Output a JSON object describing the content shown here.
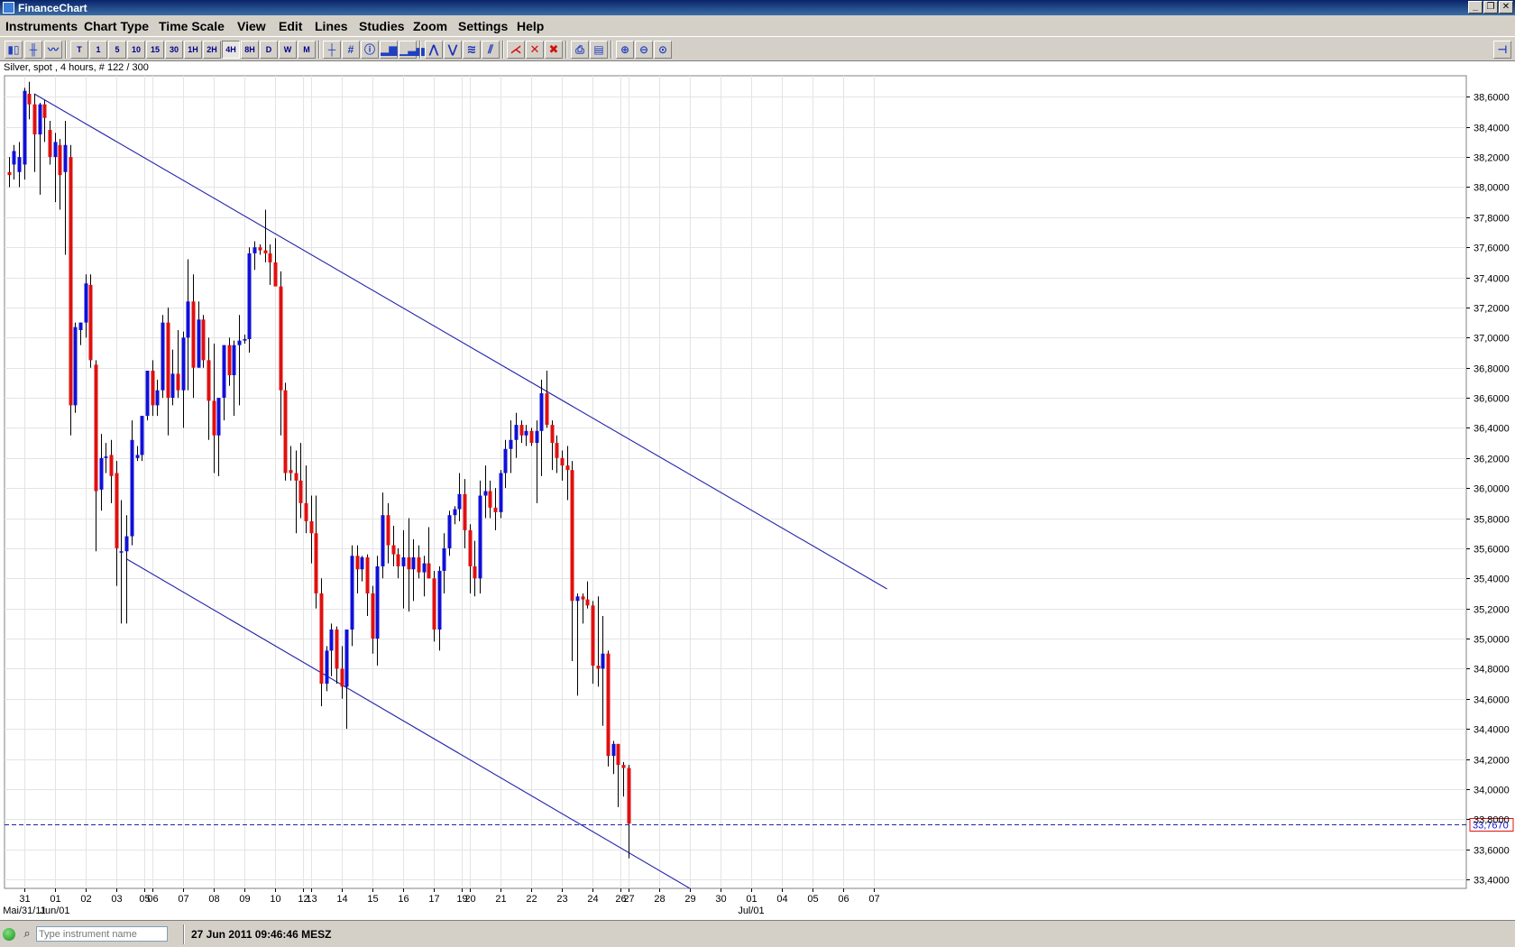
{
  "window": {
    "title": "FinanceChart"
  },
  "menu": [
    "Instruments",
    "Chart Type",
    "Time Scale",
    "View",
    "Edit",
    "Lines",
    "Studies",
    "Zoom",
    "Settings",
    "Help"
  ],
  "toolbar": {
    "timeframes": [
      "T",
      "1",
      "5",
      "10",
      "15",
      "30",
      "1H",
      "2H",
      "4H",
      "8H",
      "D",
      "W",
      "M"
    ],
    "active_timeframe": "4H"
  },
  "chart_info": "Silver, spot , 4 hours, # 122 / 300",
  "status": {
    "search_placeholder": "Type instrument name",
    "datetime": "27 Jun 2011 09:46:46 MESZ"
  },
  "chart_data": {
    "type": "candlestick",
    "instrument": "Silver, spot",
    "timeframe": "4 hours",
    "ylim": [
      33.34,
      38.74
    ],
    "yticks": [
      "38,6000",
      "38,4000",
      "38,2000",
      "38,0000",
      "37,8000",
      "37,6000",
      "37,4000",
      "37,2000",
      "37,0000",
      "36,8000",
      "36,6000",
      "36,4000",
      "36,2000",
      "36,0000",
      "35,8000",
      "35,6000",
      "35,4000",
      "35,2000",
      "35,0000",
      "34,8000",
      "34,6000",
      "34,4000",
      "34,2000",
      "34,0000",
      "33,8000",
      "33,6000",
      "33,4000"
    ],
    "xticks": [
      {
        "label": "31",
        "i": 3
      },
      {
        "label": "01",
        "i": 9
      },
      {
        "label": "02",
        "i": 15
      },
      {
        "label": "03",
        "i": 21
      },
      {
        "label": "05",
        "i": 26.5
      },
      {
        "label": "06",
        "i": 28
      },
      {
        "label": "07",
        "i": 34
      },
      {
        "label": "08",
        "i": 40
      },
      {
        "label": "09",
        "i": 46
      },
      {
        "label": "10",
        "i": 52
      },
      {
        "label": "12",
        "i": 57.5
      },
      {
        "label": "13",
        "i": 59
      },
      {
        "label": "14",
        "i": 65
      },
      {
        "label": "15",
        "i": 71
      },
      {
        "label": "16",
        "i": 77
      },
      {
        "label": "17",
        "i": 83
      },
      {
        "label": "19",
        "i": 88.5
      },
      {
        "label": "20",
        "i": 90
      },
      {
        "label": "21",
        "i": 96
      },
      {
        "label": "22",
        "i": 102
      },
      {
        "label": "23",
        "i": 108
      },
      {
        "label": "24",
        "i": 114
      },
      {
        "label": "26",
        "i": 119.5
      },
      {
        "label": "27",
        "i": 121
      },
      {
        "label": "28",
        "i": 127
      },
      {
        "label": "29",
        "i": 133
      },
      {
        "label": "30",
        "i": 139
      },
      {
        "label": "01",
        "i": 145
      },
      {
        "label": "04",
        "i": 151
      },
      {
        "label": "05",
        "i": 157
      },
      {
        "label": "06",
        "i": 163
      },
      {
        "label": "07",
        "i": 169
      }
    ],
    "xticks_secondary": [
      {
        "label": "Mai/31/11",
        "i": 3
      },
      {
        "label": "Jun/01",
        "i": 9
      },
      {
        "label": "Jul/01",
        "i": 145
      }
    ],
    "last_price_label": "33,7670",
    "last_price": 33.767,
    "trendlines": [
      {
        "from": {
          "i": 5,
          "p": 38.62
        },
        "to": {
          "i": 171.5,
          "p": 35.33
        }
      },
      {
        "from": {
          "i": 23,
          "p": 35.53
        },
        "to": {
          "i": 133.5,
          "p": 33.33
        }
      }
    ],
    "candles": [
      {
        "o": 38.1,
        "h": 38.2,
        "l": 38.0,
        "c": 38.08
      },
      {
        "o": 38.15,
        "h": 38.28,
        "l": 38.05,
        "c": 38.24
      },
      {
        "o": 38.1,
        "h": 38.3,
        "l": 38.0,
        "c": 38.2
      },
      {
        "o": 38.15,
        "h": 38.66,
        "l": 38.05,
        "c": 38.64
      },
      {
        "o": 38.62,
        "h": 38.7,
        "l": 38.45,
        "c": 38.55
      },
      {
        "o": 38.55,
        "h": 38.62,
        "l": 38.1,
        "c": 38.35
      },
      {
        "o": 38.35,
        "h": 38.56,
        "l": 37.95,
        "c": 38.55
      },
      {
        "o": 38.55,
        "h": 38.58,
        "l": 38.3,
        "c": 38.46
      },
      {
        "o": 38.38,
        "h": 38.44,
        "l": 38.15,
        "c": 38.2
      },
      {
        "o": 38.2,
        "h": 38.36,
        "l": 37.9,
        "c": 38.3
      },
      {
        "o": 38.28,
        "h": 38.32,
        "l": 37.85,
        "c": 38.08
      },
      {
        "o": 38.1,
        "h": 38.44,
        "l": 37.55,
        "c": 38.28
      },
      {
        "o": 38.2,
        "h": 38.28,
        "l": 36.35,
        "c": 36.55
      },
      {
        "o": 36.55,
        "h": 37.1,
        "l": 36.5,
        "c": 37.07
      },
      {
        "o": 37.05,
        "h": 37.1,
        "l": 36.95,
        "c": 37.1
      },
      {
        "o": 37.1,
        "h": 37.42,
        "l": 37.0,
        "c": 37.36
      },
      {
        "o": 37.35,
        "h": 37.42,
        "l": 36.8,
        "c": 36.85
      },
      {
        "o": 36.82,
        "h": 36.85,
        "l": 35.58,
        "c": 35.98
      },
      {
        "o": 35.99,
        "h": 36.36,
        "l": 35.85,
        "c": 36.2
      },
      {
        "o": 36.2,
        "h": 36.3,
        "l": 36.1,
        "c": 36.21
      },
      {
        "o": 36.22,
        "h": 36.32,
        "l": 35.9,
        "c": 36.08
      },
      {
        "o": 36.1,
        "h": 36.18,
        "l": 35.35,
        "c": 35.6
      },
      {
        "o": 35.58,
        "h": 35.92,
        "l": 35.1,
        "c": 35.58
      },
      {
        "o": 35.58,
        "h": 35.82,
        "l": 35.1,
        "c": 35.68
      },
      {
        "o": 35.68,
        "h": 36.45,
        "l": 35.62,
        "c": 36.32
      },
      {
        "o": 36.2,
        "h": 36.28,
        "l": 36.18,
        "c": 36.22
      },
      {
        "o": 36.22,
        "h": 36.48,
        "l": 36.18,
        "c": 36.48
      },
      {
        "o": 36.48,
        "h": 36.78,
        "l": 36.45,
        "c": 36.78
      },
      {
        "o": 36.78,
        "h": 36.85,
        "l": 36.48,
        "c": 36.55
      },
      {
        "o": 36.55,
        "h": 36.72,
        "l": 36.48,
        "c": 36.65
      },
      {
        "o": 36.65,
        "h": 37.15,
        "l": 36.6,
        "c": 37.1
      },
      {
        "o": 37.1,
        "h": 37.2,
        "l": 36.35,
        "c": 36.6
      },
      {
        "o": 36.6,
        "h": 36.92,
        "l": 36.55,
        "c": 36.76
      },
      {
        "o": 36.76,
        "h": 37.05,
        "l": 36.6,
        "c": 36.65
      },
      {
        "o": 36.65,
        "h": 37.04,
        "l": 36.4,
        "c": 37.0
      },
      {
        "o": 37.0,
        "h": 37.52,
        "l": 36.65,
        "c": 37.24
      },
      {
        "o": 37.24,
        "h": 37.42,
        "l": 36.6,
        "c": 36.8
      },
      {
        "o": 36.8,
        "h": 37.24,
        "l": 36.8,
        "c": 37.12
      },
      {
        "o": 37.12,
        "h": 37.15,
        "l": 36.8,
        "c": 36.85
      },
      {
        "o": 36.85,
        "h": 37.0,
        "l": 36.32,
        "c": 36.58
      },
      {
        "o": 36.58,
        "h": 36.96,
        "l": 36.1,
        "c": 36.35
      },
      {
        "o": 36.35,
        "h": 36.58,
        "l": 36.08,
        "c": 36.6
      },
      {
        "o": 36.6,
        "h": 36.95,
        "l": 36.45,
        "c": 36.95
      },
      {
        "o": 36.95,
        "h": 37.0,
        "l": 36.68,
        "c": 36.75
      },
      {
        "o": 36.75,
        "h": 36.98,
        "l": 36.48,
        "c": 36.95
      },
      {
        "o": 36.95,
        "h": 37.15,
        "l": 36.55,
        "c": 36.98
      },
      {
        "o": 36.98,
        "h": 37.02,
        "l": 36.96,
        "c": 36.99
      },
      {
        "o": 36.99,
        "h": 37.6,
        "l": 36.9,
        "c": 37.56
      },
      {
        "o": 37.56,
        "h": 37.64,
        "l": 37.45,
        "c": 37.6
      },
      {
        "o": 37.6,
        "h": 37.62,
        "l": 37.55,
        "c": 37.58
      },
      {
        "o": 37.58,
        "h": 37.85,
        "l": 37.5,
        "c": 37.56
      },
      {
        "o": 37.56,
        "h": 37.62,
        "l": 37.35,
        "c": 37.5
      },
      {
        "o": 37.5,
        "h": 37.66,
        "l": 37.35,
        "c": 37.34
      },
      {
        "o": 37.34,
        "h": 37.44,
        "l": 36.35,
        "c": 36.65
      },
      {
        "o": 36.65,
        "h": 36.7,
        "l": 36.05,
        "c": 36.1
      },
      {
        "o": 36.12,
        "h": 36.28,
        "l": 36.05,
        "c": 36.1
      },
      {
        "o": 36.1,
        "h": 36.25,
        "l": 35.7,
        "c": 36.05
      },
      {
        "o": 36.05,
        "h": 36.3,
        "l": 35.8,
        "c": 35.9
      },
      {
        "o": 35.9,
        "h": 36.15,
        "l": 35.7,
        "c": 35.78
      },
      {
        "o": 35.78,
        "h": 35.95,
        "l": 35.5,
        "c": 35.7
      },
      {
        "o": 35.7,
        "h": 35.95,
        "l": 35.2,
        "c": 35.3
      },
      {
        "o": 35.3,
        "h": 35.4,
        "l": 34.55,
        "c": 34.7
      },
      {
        "o": 34.7,
        "h": 34.95,
        "l": 34.65,
        "c": 34.92
      },
      {
        "o": 34.92,
        "h": 35.1,
        "l": 34.75,
        "c": 35.06
      },
      {
        "o": 35.06,
        "h": 35.08,
        "l": 34.7,
        "c": 34.8
      },
      {
        "o": 34.8,
        "h": 34.95,
        "l": 34.6,
        "c": 34.68
      },
      {
        "o": 34.68,
        "h": 35.06,
        "l": 34.4,
        "c": 35.06
      },
      {
        "o": 35.06,
        "h": 35.62,
        "l": 34.95,
        "c": 35.55
      },
      {
        "o": 35.55,
        "h": 35.62,
        "l": 35.3,
        "c": 35.46
      },
      {
        "o": 35.46,
        "h": 35.55,
        "l": 35.38,
        "c": 35.54
      },
      {
        "o": 35.54,
        "h": 35.56,
        "l": 35.15,
        "c": 35.3
      },
      {
        "o": 35.3,
        "h": 35.35,
        "l": 34.9,
        "c": 35.0
      },
      {
        "o": 35.0,
        "h": 35.55,
        "l": 34.82,
        "c": 35.48
      },
      {
        "o": 35.48,
        "h": 35.97,
        "l": 35.4,
        "c": 35.82
      },
      {
        "o": 35.82,
        "h": 35.9,
        "l": 35.5,
        "c": 35.62
      },
      {
        "o": 35.62,
        "h": 35.75,
        "l": 35.48,
        "c": 35.56
      },
      {
        "o": 35.56,
        "h": 35.6,
        "l": 35.4,
        "c": 35.48
      },
      {
        "o": 35.48,
        "h": 35.72,
        "l": 35.2,
        "c": 35.54
      },
      {
        "o": 35.54,
        "h": 35.8,
        "l": 35.18,
        "c": 35.46
      },
      {
        "o": 35.46,
        "h": 35.66,
        "l": 35.25,
        "c": 35.54
      },
      {
        "o": 35.54,
        "h": 35.62,
        "l": 35.4,
        "c": 35.44
      },
      {
        "o": 35.44,
        "h": 35.55,
        "l": 35.28,
        "c": 35.5
      },
      {
        "o": 35.5,
        "h": 35.74,
        "l": 35.4,
        "c": 35.4
      },
      {
        "o": 35.4,
        "h": 35.45,
        "l": 34.98,
        "c": 35.06
      },
      {
        "o": 35.06,
        "h": 35.48,
        "l": 34.92,
        "c": 35.45
      },
      {
        "o": 35.45,
        "h": 35.7,
        "l": 35.3,
        "c": 35.6
      },
      {
        "o": 35.6,
        "h": 35.85,
        "l": 35.55,
        "c": 35.82
      },
      {
        "o": 35.82,
        "h": 35.88,
        "l": 35.76,
        "c": 35.86
      },
      {
        "o": 35.86,
        "h": 36.1,
        "l": 35.78,
        "c": 35.96
      },
      {
        "o": 35.96,
        "h": 36.06,
        "l": 35.6,
        "c": 35.72
      },
      {
        "o": 35.72,
        "h": 35.76,
        "l": 35.3,
        "c": 35.48
      },
      {
        "o": 35.48,
        "h": 35.65,
        "l": 35.28,
        "c": 35.4
      },
      {
        "o": 35.4,
        "h": 36.05,
        "l": 35.3,
        "c": 35.95
      },
      {
        "o": 35.95,
        "h": 36.15,
        "l": 35.8,
        "c": 35.98
      },
      {
        "o": 35.98,
        "h": 36.05,
        "l": 35.8,
        "c": 35.87
      },
      {
        "o": 35.87,
        "h": 36.0,
        "l": 35.72,
        "c": 35.84
      },
      {
        "o": 35.84,
        "h": 36.12,
        "l": 35.8,
        "c": 36.1
      },
      {
        "o": 36.1,
        "h": 36.32,
        "l": 36.0,
        "c": 36.26
      },
      {
        "o": 36.26,
        "h": 36.45,
        "l": 36.1,
        "c": 36.32
      },
      {
        "o": 36.32,
        "h": 36.5,
        "l": 36.2,
        "c": 36.42
      },
      {
        "o": 36.42,
        "h": 36.45,
        "l": 36.3,
        "c": 36.35
      },
      {
        "o": 36.35,
        "h": 36.42,
        "l": 36.28,
        "c": 36.38
      },
      {
        "o": 36.38,
        "h": 36.4,
        "l": 36.28,
        "c": 36.3
      },
      {
        "o": 36.3,
        "h": 36.45,
        "l": 35.9,
        "c": 36.38
      },
      {
        "o": 36.38,
        "h": 36.72,
        "l": 36.08,
        "c": 36.63
      },
      {
        "o": 36.63,
        "h": 36.78,
        "l": 36.4,
        "c": 36.42
      },
      {
        "o": 36.42,
        "h": 36.45,
        "l": 36.12,
        "c": 36.3
      },
      {
        "o": 36.3,
        "h": 36.35,
        "l": 36.1,
        "c": 36.2
      },
      {
        "o": 36.2,
        "h": 36.25,
        "l": 36.05,
        "c": 36.15
      },
      {
        "o": 36.15,
        "h": 36.28,
        "l": 35.92,
        "c": 36.12
      },
      {
        "o": 36.12,
        "h": 36.18,
        "l": 34.85,
        "c": 35.25
      },
      {
        "o": 35.25,
        "h": 35.3,
        "l": 34.62,
        "c": 35.28
      },
      {
        "o": 35.28,
        "h": 35.3,
        "l": 35.1,
        "c": 35.26
      },
      {
        "o": 35.26,
        "h": 35.38,
        "l": 35.2,
        "c": 35.22
      },
      {
        "o": 35.22,
        "h": 35.25,
        "l": 34.7,
        "c": 34.82
      },
      {
        "o": 34.82,
        "h": 35.28,
        "l": 34.68,
        "c": 34.8
      },
      {
        "o": 34.8,
        "h": 35.15,
        "l": 34.42,
        "c": 34.9
      },
      {
        "o": 34.9,
        "h": 34.92,
        "l": 34.15,
        "c": 34.22
      },
      {
        "o": 34.22,
        "h": 34.32,
        "l": 34.1,
        "c": 34.3
      },
      {
        "o": 34.3,
        "h": 34.3,
        "l": 33.88,
        "c": 34.16
      },
      {
        "o": 34.16,
        "h": 34.18,
        "l": 33.95,
        "c": 34.14
      },
      {
        "o": 34.14,
        "h": 34.16,
        "l": 33.54,
        "c": 33.77
      }
    ]
  }
}
